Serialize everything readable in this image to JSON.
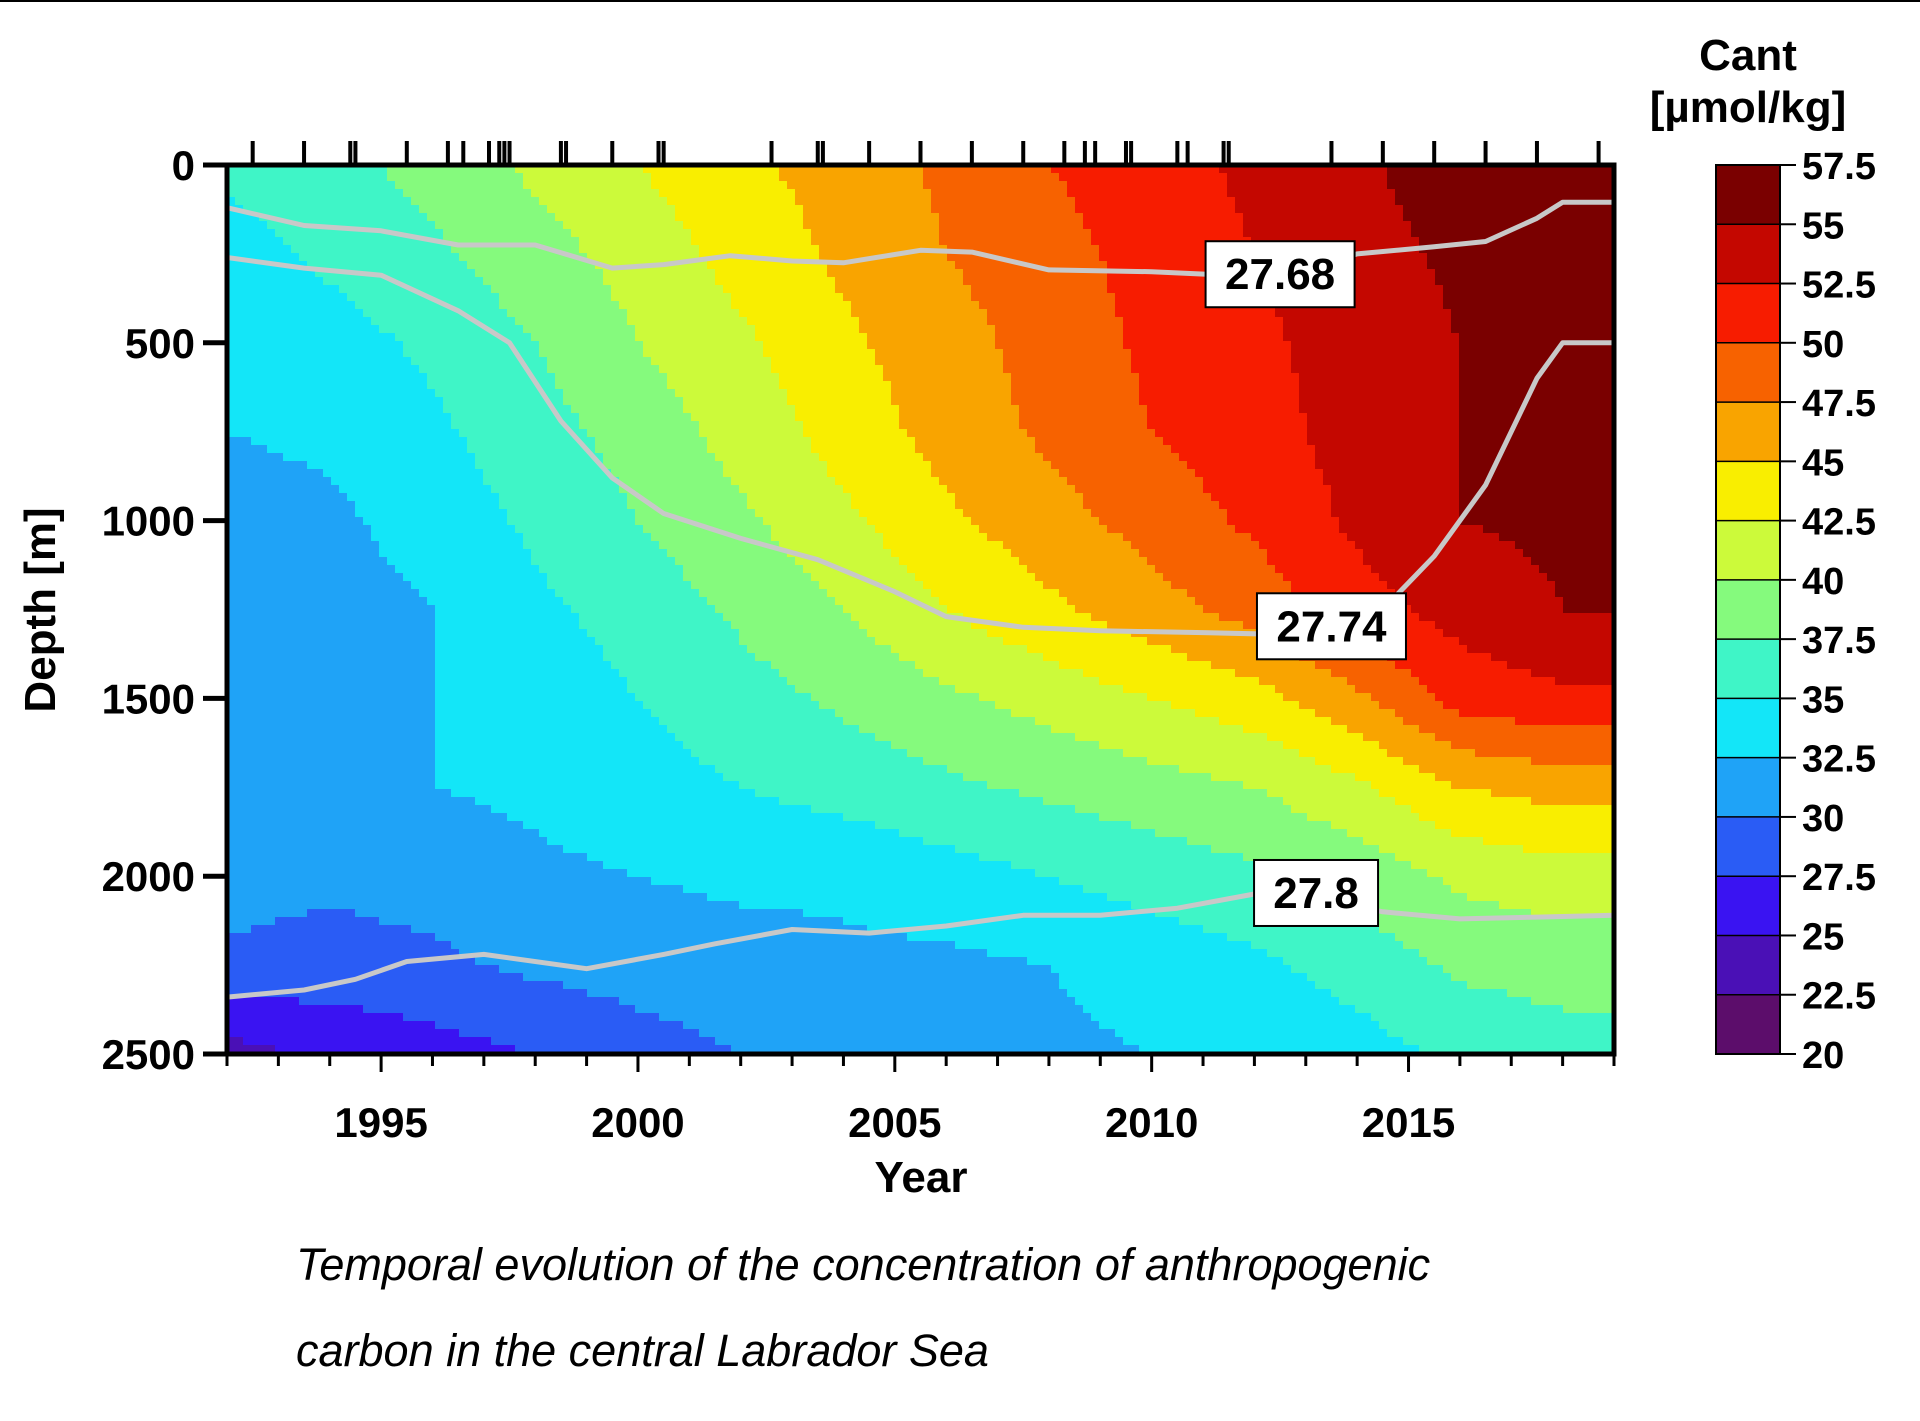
{
  "chart_data": {
    "type": "heatmap",
    "subtype": "filled-contour",
    "title": "",
    "xlabel": "Year",
    "ylabel": "Depth [m]",
    "xlim": [
      1992,
      2019
    ],
    "ylim": [
      2500,
      0
    ],
    "x_ticks": [
      1995,
      2000,
      2005,
      2010,
      2015
    ],
    "y_ticks": [
      0,
      500,
      1000,
      1500,
      2000,
      2500
    ],
    "sampling_years": [
      1992.5,
      1993.5,
      1994.4,
      1994.5,
      1995.5,
      1996.3,
      1996.6,
      1997.1,
      1997.3,
      1997.4,
      1997.5,
      1998.5,
      1998.6,
      1999.5,
      2000.4,
      2000.5,
      2002.6,
      2003.5,
      2003.6,
      2004.5,
      2005.5,
      2006.5,
      2007.5,
      2008.3,
      2008.7,
      2008.9,
      2009.5,
      2009.6,
      2010.5,
      2010.7,
      2011.4,
      2011.5,
      2013.5,
      2014.5,
      2015.5,
      2016.5,
      2017.5,
      2018.7
    ],
    "colorbar": {
      "title": "Cant",
      "unit": "[µmol/kg]",
      "levels": [
        20,
        22.5,
        25,
        27.5,
        30,
        32.5,
        35,
        37.5,
        40,
        42.5,
        45,
        47.5,
        50,
        52.5,
        55,
        57.5
      ],
      "tick_labels": [
        "57.5",
        "55",
        "52.5",
        "50",
        "47.5",
        "45",
        "42.5",
        "40",
        "37.5",
        "35",
        "32.5",
        "30",
        "27.5",
        "25",
        "22.5",
        "20"
      ],
      "colors": [
        "#5c0d6b",
        "#4a10b6",
        "#3a13f2",
        "#2a5cf5",
        "#1fa3f7",
        "#13e6f8",
        "#3ff5c7",
        "#85fa7d",
        "#ccfa3a",
        "#f9ee00",
        "#f9a400",
        "#f76200",
        "#f71c00",
        "#c40700",
        "#7a0000"
      ]
    },
    "contour_grid": {
      "years": [
        1992,
        1994,
        1996,
        1998,
        2000,
        2002,
        2004,
        2006,
        2008,
        2010,
        2012,
        2014,
        2016,
        2018,
        2019
      ],
      "depths": [
        0,
        250,
        500,
        750,
        1000,
        1250,
        1500,
        1750,
        2000,
        2250,
        2500
      ],
      "cant": [
        [
          35.5,
          36.5,
          38.5,
          40.5,
          42.5,
          44.5,
          46.0,
          48.0,
          50.0,
          51.5,
          53.0,
          54.5,
          56.5,
          58.0,
          58.5
        ],
        [
          34.0,
          35.5,
          37.0,
          39.0,
          41.0,
          43.5,
          45.5,
          47.5,
          49.0,
          51.0,
          52.5,
          54.0,
          55.5,
          56.5,
          56.5
        ],
        [
          33.0,
          34.0,
          35.5,
          37.5,
          40.0,
          42.0,
          44.5,
          46.5,
          48.5,
          50.5,
          52.0,
          53.5,
          55.0,
          55.5,
          55.5
        ],
        [
          32.5,
          33.0,
          34.5,
          36.5,
          38.5,
          41.0,
          43.5,
          46.0,
          48.0,
          50.0,
          51.5,
          53.5,
          55.0,
          55.5,
          55.5
        ],
        [
          31.5,
          32.0,
          33.5,
          35.5,
          37.5,
          39.5,
          42.0,
          44.5,
          46.5,
          48.5,
          50.5,
          53.0,
          55.0,
          55.5,
          55.5
        ],
        [
          31.0,
          31.5,
          32.5,
          34.5,
          36.0,
          38.0,
          40.0,
          42.5,
          44.5,
          46.5,
          48.5,
          51.5,
          53.5,
          55.0,
          55.0
        ],
        [
          30.5,
          31.0,
          32.5,
          33.5,
          35.0,
          36.5,
          38.0,
          39.5,
          41.0,
          42.5,
          44.0,
          47.0,
          51.0,
          52.0,
          52.0
        ],
        [
          30.5,
          31.0,
          32.5,
          33.0,
          34.0,
          35.0,
          36.0,
          37.0,
          38.0,
          39.0,
          40.0,
          42.0,
          45.0,
          46.0,
          46.0
        ],
        [
          31.0,
          30.5,
          31.0,
          32.0,
          32.5,
          33.0,
          33.0,
          34.0,
          35.0,
          36.0,
          37.0,
          38.5,
          40.5,
          41.5,
          41.5
        ],
        [
          29.5,
          29.0,
          29.5,
          30.5,
          31.0,
          31.5,
          32.0,
          32.0,
          32.5,
          33.5,
          34.5,
          36.0,
          38.0,
          38.5,
          38.5
        ],
        [
          24.0,
          25.5,
          26.5,
          27.5,
          29.0,
          30.0,
          31.0,
          31.5,
          32.0,
          32.5,
          33.0,
          34.0,
          35.5,
          36.5,
          36.5
        ]
      ]
    },
    "isopycnals": [
      {
        "label": "27.68",
        "label_position": [
          2012.5,
          310
        ],
        "points": [
          [
            1992,
            120
          ],
          [
            1993.5,
            170
          ],
          [
            1995,
            185
          ],
          [
            1996.5,
            225
          ],
          [
            1998,
            225
          ],
          [
            1999.5,
            290
          ],
          [
            2000.5,
            280
          ],
          [
            2001.8,
            255
          ],
          [
            2003,
            270
          ],
          [
            2004,
            275
          ],
          [
            2005.5,
            240
          ],
          [
            2006.5,
            245
          ],
          [
            2008,
            295
          ],
          [
            2010,
            300
          ],
          [
            2011.5,
            310
          ],
          [
            2012.5,
            320
          ],
          [
            2014,
            250
          ],
          [
            2015.5,
            230
          ],
          [
            2016.5,
            215
          ],
          [
            2017.5,
            150
          ],
          [
            2018,
            105
          ],
          [
            2019,
            105
          ]
        ]
      },
      {
        "label": "27.74",
        "label_position": [
          2013.5,
          1300
        ],
        "points": [
          [
            1992,
            260
          ],
          [
            1993.5,
            290
          ],
          [
            1995,
            310
          ],
          [
            1996.5,
            410
          ],
          [
            1997.5,
            500
          ],
          [
            1998.5,
            720
          ],
          [
            1999.5,
            880
          ],
          [
            2000.5,
            980
          ],
          [
            2002,
            1050
          ],
          [
            2003.5,
            1110
          ],
          [
            2005,
            1200
          ],
          [
            2006,
            1270
          ],
          [
            2007.5,
            1300
          ],
          [
            2009,
            1310
          ],
          [
            2011,
            1315
          ],
          [
            2012.5,
            1320
          ],
          [
            2013.5,
            1300
          ],
          [
            2014.5,
            1250
          ],
          [
            2015.5,
            1100
          ],
          [
            2016.5,
            900
          ],
          [
            2017.5,
            600
          ],
          [
            2018,
            500
          ],
          [
            2019,
            500
          ]
        ]
      },
      {
        "label": "27.8",
        "label_position": [
          2013.2,
          2050
        ],
        "points": [
          [
            1992,
            2340
          ],
          [
            1993.5,
            2320
          ],
          [
            1994.5,
            2290
          ],
          [
            1995.5,
            2240
          ],
          [
            1997,
            2220
          ],
          [
            1999,
            2260
          ],
          [
            2000.5,
            2220
          ],
          [
            2001.5,
            2190
          ],
          [
            2003,
            2150
          ],
          [
            2004.5,
            2160
          ],
          [
            2006,
            2140
          ],
          [
            2007.5,
            2110
          ],
          [
            2009,
            2110
          ],
          [
            2010.5,
            2090
          ],
          [
            2012,
            2050
          ],
          [
            2013.5,
            2070
          ],
          [
            2014.5,
            2100
          ],
          [
            2016,
            2120
          ],
          [
            2017.5,
            2115
          ],
          [
            2019,
            2110
          ]
        ]
      }
    ]
  },
  "caption_lines": [
    "Temporal evolution of the concentration of anthropogenic",
    "carbon in the central Labrador Sea"
  ]
}
